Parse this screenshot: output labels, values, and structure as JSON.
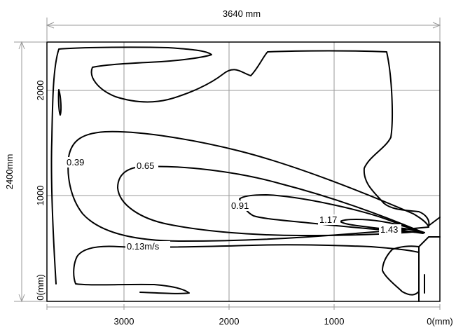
{
  "diagram": {
    "width_label": "3640 mm",
    "height_label": "2400mm",
    "x_ticks": [
      "3000",
      "2000",
      "1000",
      "0(mm)"
    ],
    "y_ticks": [
      "2000",
      "1000",
      "0(mm)"
    ],
    "contour_labels": [
      "0.39",
      "0.65",
      "0.91",
      "1.17",
      "1.43",
      "0.13m/s"
    ]
  }
}
